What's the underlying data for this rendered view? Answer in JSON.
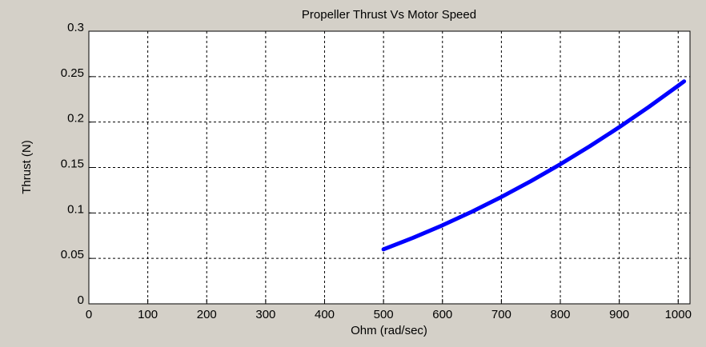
{
  "chart_data": {
    "type": "line",
    "title": "Propeller Thrust Vs Motor Speed",
    "x_label": "Ohm (rad/sec)",
    "y_label": "Thrust (N)",
    "x": [
      500,
      550,
      600,
      650,
      700,
      750,
      800,
      850,
      900,
      950,
      1000,
      1010
    ],
    "series": [
      {
        "color": "#0000ff",
        "values": [
          0.06,
          0.0726,
          0.0864,
          0.1014,
          0.1176,
          0.135,
          0.1536,
          0.1734,
          0.1944,
          0.2166,
          0.24,
          0.2448
        ]
      }
    ],
    "xlim": [
      0,
      1020
    ],
    "xticks": [
      0,
      100,
      200,
      300,
      400,
      500,
      600,
      700,
      800,
      900,
      1000
    ],
    "ylim": [
      0,
      0.3
    ],
    "yticks": [
      0,
      0.05,
      0.1,
      0.15,
      0.2,
      0.25,
      0.3
    ],
    "grid": true
  }
}
